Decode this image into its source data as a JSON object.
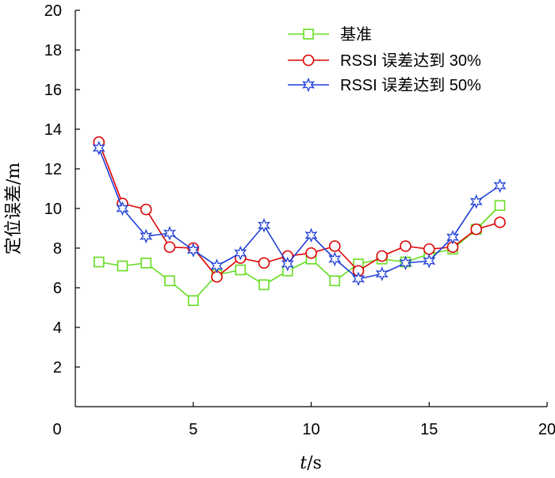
{
  "chart_data": {
    "type": "line",
    "title": "",
    "xlabel_var": "t",
    "xlabel_unit": "/s",
    "ylabel": "定位误差/m",
    "xlim": [
      0,
      20
    ],
    "ylim": [
      0,
      20
    ],
    "x_ticks": [
      0,
      5,
      10,
      15,
      20
    ],
    "y_ticks": [
      2,
      4,
      6,
      8,
      10,
      12,
      14,
      16,
      18,
      20
    ],
    "origin_label": "0",
    "grid": false,
    "legend_position": "top-right",
    "x": [
      1,
      2,
      3,
      4,
      5,
      6,
      7,
      8,
      9,
      10,
      11,
      12,
      13,
      14,
      15,
      16,
      17,
      18
    ],
    "series": [
      {
        "name": "基准",
        "color": "#66dd22",
        "marker": "square",
        "values": [
          7.3,
          7.1,
          7.25,
          6.35,
          5.35,
          6.65,
          6.9,
          6.15,
          6.85,
          7.45,
          6.35,
          7.2,
          7.45,
          7.3,
          7.7,
          7.95,
          8.95,
          10.15
        ]
      },
      {
        "name": "RSSI 误差达到 30%",
        "color": "#dd0000",
        "marker": "circle",
        "values": [
          13.35,
          10.25,
          9.95,
          8.05,
          8.0,
          6.55,
          7.5,
          7.25,
          7.6,
          7.75,
          8.1,
          6.85,
          7.6,
          8.1,
          7.95,
          8.05,
          8.95,
          9.3
        ]
      },
      {
        "name": "RSSI 误差达到 50%",
        "color": "#1f3fd8",
        "marker": "star",
        "values": [
          13.05,
          10.0,
          8.6,
          8.75,
          7.9,
          7.1,
          7.75,
          9.15,
          7.2,
          8.65,
          7.45,
          6.45,
          6.7,
          7.25,
          7.35,
          8.55,
          10.35,
          11.15
        ]
      }
    ]
  }
}
